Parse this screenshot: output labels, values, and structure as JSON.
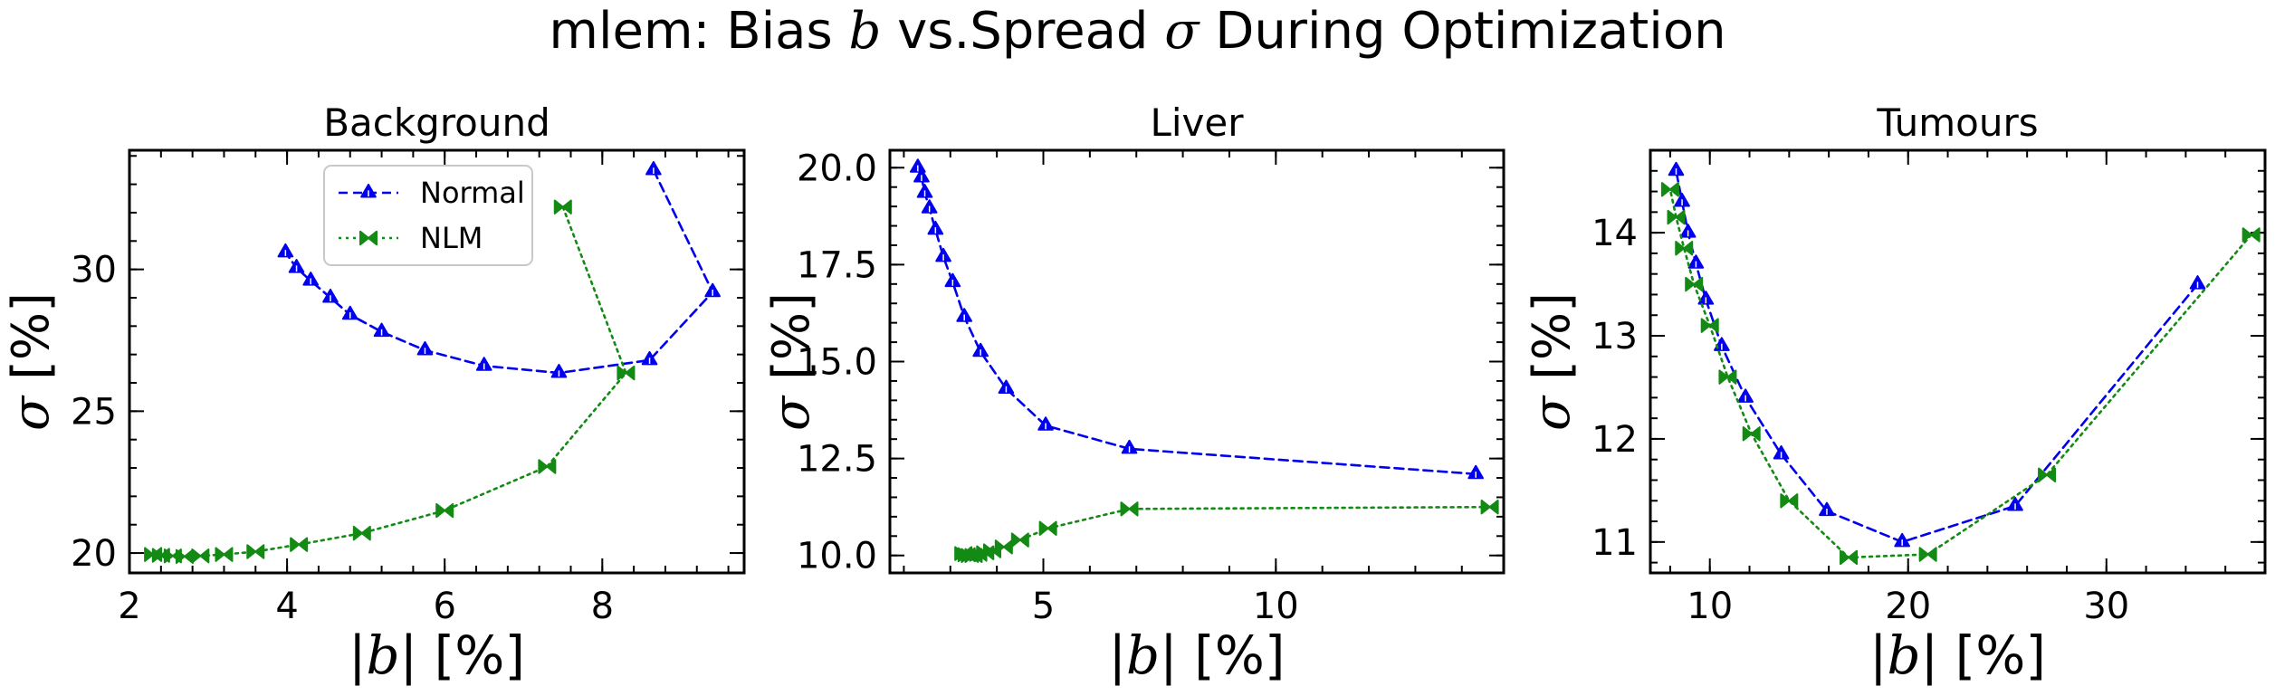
{
  "figure": {
    "suptitle_prefix": "mlem: Bias ",
    "suptitle_b": "b",
    "suptitle_middle": " vs.Spread ",
    "suptitle_sigma": "σ",
    "suptitle_suffix": " During Optimization",
    "ylabel_symbol": "σ",
    "ylabel_unit": " [%]",
    "xlabel_left": "|",
    "xlabel_symbol": "b",
    "xlabel_unit": "| [%]",
    "colors": {
      "normal": "#0000ee",
      "nlm": "#138a13"
    },
    "marker_names": {
      "normal": "tri-marker-icon",
      "nlm": "bowtie-marker-icon"
    }
  },
  "chart_data": [
    {
      "type": "line",
      "title": "Background",
      "xlabel": "|b| [%]",
      "ylabel": "σ [%]",
      "xlim": [
        2.0,
        9.8
      ],
      "ylim": [
        19.3,
        34.2
      ],
      "xticks": [
        2,
        4,
        6,
        8
      ],
      "xtick_labels": [
        "2",
        "4",
        "6",
        "8"
      ],
      "yticks": [
        20,
        25,
        30
      ],
      "ytick_labels": [
        "20",
        "25",
        "30"
      ],
      "x_minor_step": 0.4,
      "y_minor_step": 1,
      "legend": {
        "placement": "upper-center",
        "entries": [
          "Normal",
          "NLM"
        ]
      },
      "series": [
        {
          "name": "Normal",
          "style": "dashed",
          "marker": "tri",
          "x": [
            8.65,
            9.4,
            8.6,
            7.45,
            6.5,
            5.75,
            5.2,
            4.8,
            4.55,
            4.3,
            4.12,
            3.98
          ],
          "y": [
            33.5,
            29.2,
            26.8,
            26.35,
            26.6,
            27.15,
            27.8,
            28.4,
            29.0,
            29.6,
            30.05,
            30.6
          ]
        },
        {
          "name": "NLM",
          "style": "dotted",
          "marker": "bowtie",
          "x": [
            7.5,
            8.3,
            7.3,
            6.0,
            4.95,
            4.15,
            3.6,
            3.2,
            2.9,
            2.7,
            2.55,
            2.4,
            2.3
          ],
          "y": [
            32.2,
            26.35,
            23.05,
            21.5,
            20.7,
            20.3,
            20.05,
            19.95,
            19.9,
            19.88,
            19.9,
            19.92,
            19.95
          ]
        }
      ]
    },
    {
      "type": "line",
      "title": "Liver",
      "xlabel": "|b| [%]",
      "ylabel": "σ [%]",
      "xlim": [
        1.7,
        14.9
      ],
      "ylim": [
        9.55,
        20.45
      ],
      "xticks": [
        5,
        10
      ],
      "xtick_labels": [
        "5",
        "10"
      ],
      "yticks": [
        10.0,
        12.5,
        15.0,
        17.5,
        20.0
      ],
      "ytick_labels": [
        "10.0",
        "12.5",
        "15.0",
        "17.5",
        "20.0"
      ],
      "x_minor_step": 1,
      "y_minor_step": 0.5,
      "series": [
        {
          "name": "Normal",
          "style": "dashed",
          "marker": "tri",
          "x": [
            14.3,
            6.85,
            5.05,
            4.2,
            3.65,
            3.3,
            3.05,
            2.85,
            2.68,
            2.55,
            2.45,
            2.38,
            2.3
          ],
          "y": [
            12.1,
            12.75,
            13.35,
            14.3,
            15.25,
            16.15,
            17.05,
            17.7,
            18.4,
            18.95,
            19.35,
            19.75,
            20.0
          ]
        },
        {
          "name": "NLM",
          "style": "dotted",
          "marker": "bowtie",
          "x": [
            14.6,
            6.85,
            5.1,
            4.5,
            4.15,
            3.9,
            3.75,
            3.6,
            3.5,
            3.42,
            3.35,
            3.28
          ],
          "y": [
            11.25,
            11.2,
            10.7,
            10.4,
            10.22,
            10.12,
            10.07,
            10.03,
            10.0,
            10.0,
            10.02,
            10.05
          ]
        }
      ]
    },
    {
      "type": "line",
      "title": "Tumours",
      "xlabel": "|b| [%]",
      "ylabel": "σ [%]",
      "xlim": [
        7.0,
        38.0
      ],
      "ylim": [
        10.7,
        14.8
      ],
      "xticks": [
        10,
        20,
        30
      ],
      "xtick_labels": [
        "10",
        "20",
        "30"
      ],
      "yticks": [
        11,
        12,
        13,
        14
      ],
      "ytick_labels": [
        "11",
        "12",
        "13",
        "14"
      ],
      "x_minor_step": 2,
      "y_minor_step": 0.2,
      "series": [
        {
          "name": "Normal",
          "style": "dashed",
          "marker": "tri",
          "x": [
            34.6,
            25.4,
            19.7,
            15.9,
            13.6,
            11.8,
            10.6,
            9.8,
            9.3,
            8.9,
            8.6,
            8.3
          ],
          "y": [
            13.5,
            11.35,
            11.0,
            11.3,
            11.85,
            12.4,
            12.9,
            13.35,
            13.7,
            14.0,
            14.3,
            14.6
          ]
        },
        {
          "name": "NLM",
          "style": "dotted",
          "marker": "bowtie",
          "x": [
            37.3,
            27.0,
            21.0,
            17.0,
            14.0,
            12.1,
            10.9,
            10.0,
            9.2,
            8.7,
            8.3,
            8.0
          ],
          "y": [
            13.98,
            11.65,
            10.88,
            10.85,
            11.4,
            12.05,
            12.6,
            13.1,
            13.5,
            13.85,
            14.15,
            14.42
          ]
        }
      ]
    }
  ]
}
